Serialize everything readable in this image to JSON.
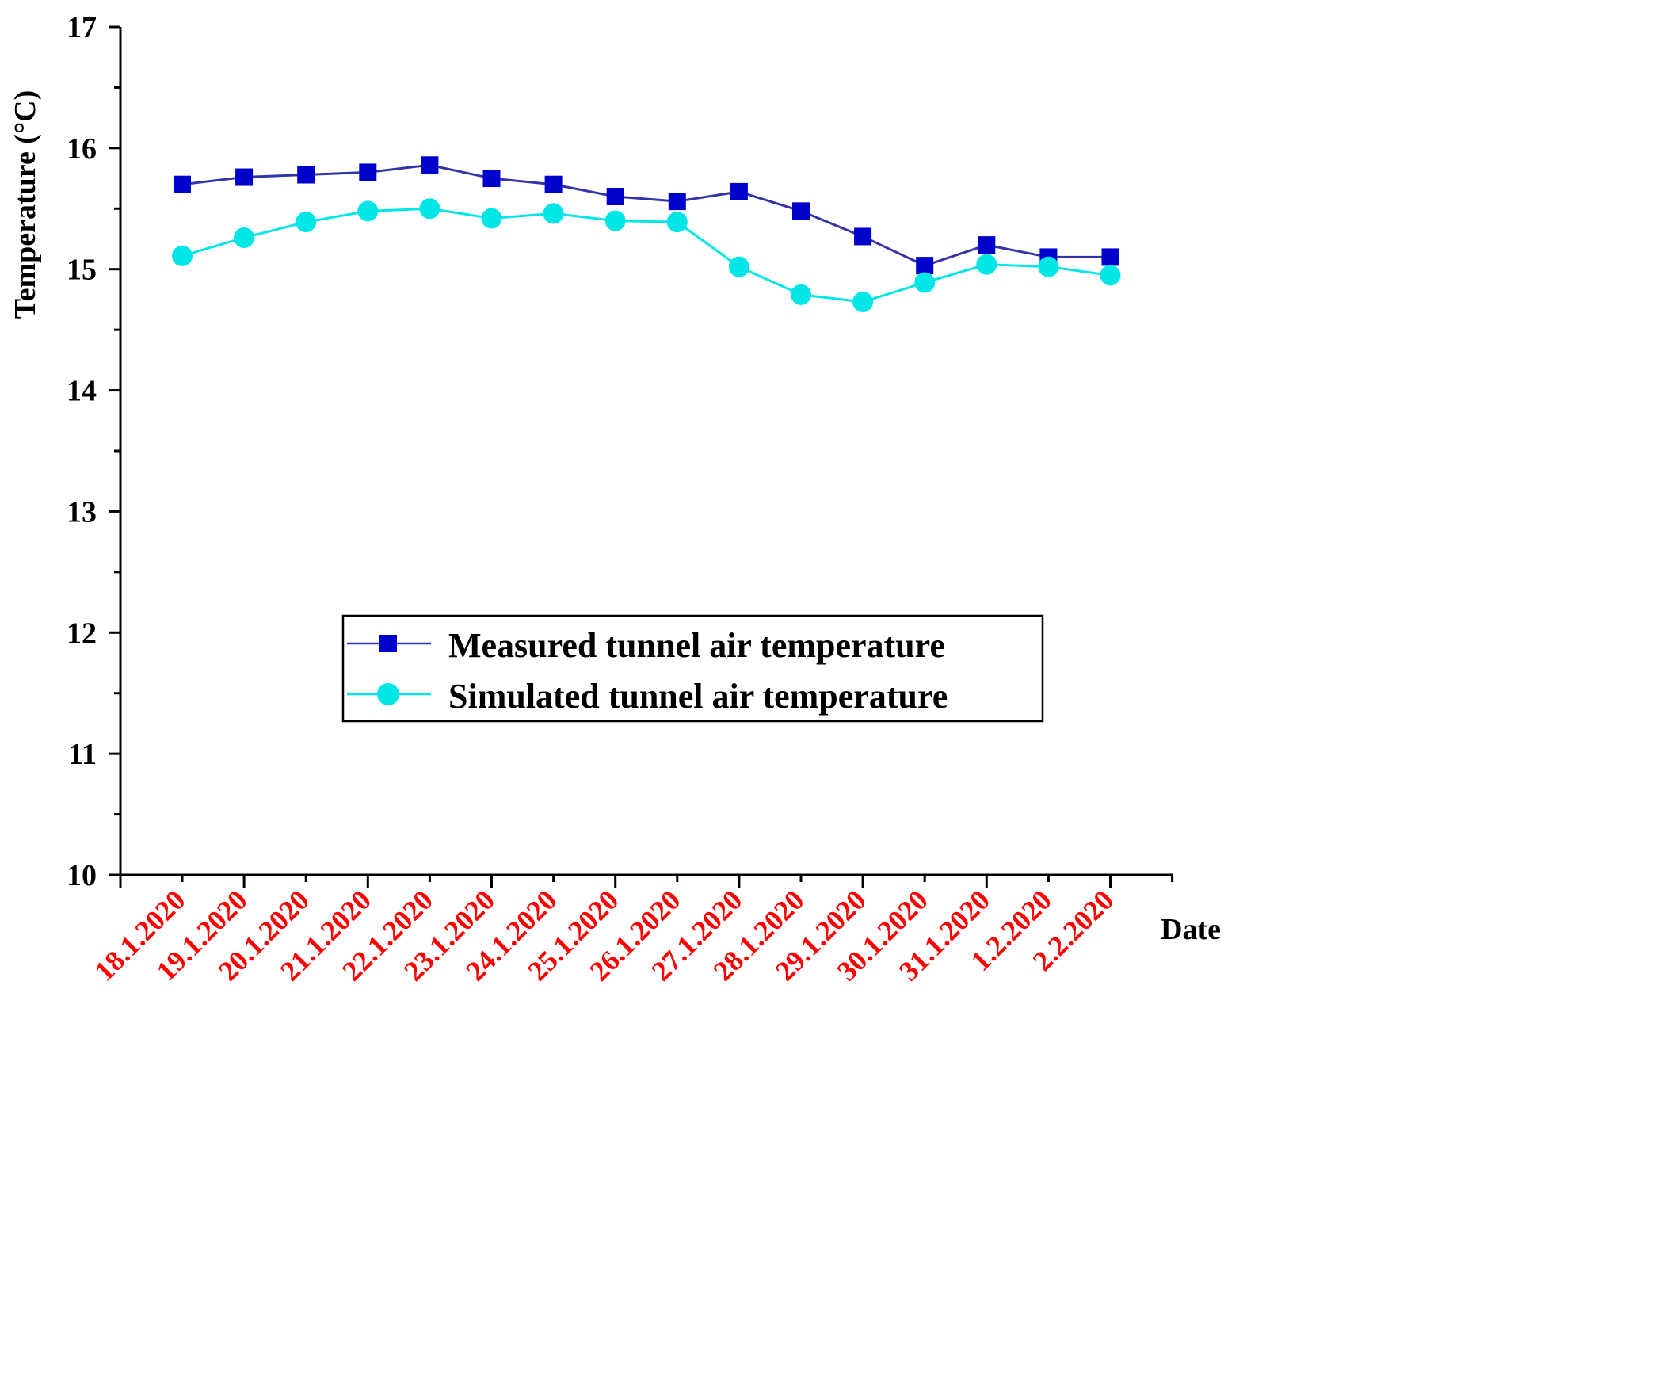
{
  "chart_data": {
    "type": "line",
    "title": "",
    "xlabel": "Date",
    "ylabel": "Temperature (°C)",
    "ylim": [
      10,
      17
    ],
    "yticks": [
      10,
      11,
      12,
      13,
      14,
      15,
      16,
      17
    ],
    "categories": [
      "18.1.2020",
      "19.1.2020",
      "20.1.2020",
      "21.1.2020",
      "22.1.2020",
      "23.1.2020",
      "24.1.2020",
      "25.1.2020",
      "26.1.2020",
      "27.1.2020",
      "28.1.2020",
      "29.1.2020",
      "30.1.2020",
      "31.1.2020",
      "1.2.2020",
      "2.2.2020"
    ],
    "legend_position": "center-right",
    "series": [
      {
        "name": "Measured tunnel air temperature",
        "marker": "square",
        "color": "#0000cc",
        "line_color": "#3333aa",
        "values": [
          15.7,
          15.76,
          15.78,
          15.8,
          15.86,
          15.75,
          15.7,
          15.6,
          15.56,
          15.64,
          15.48,
          15.27,
          15.03,
          15.2,
          15.1,
          15.1
        ]
      },
      {
        "name": "Simulated tunnel air temperature",
        "marker": "circle",
        "color": "#00e6e6",
        "line_color": "#00e6e6",
        "values": [
          15.11,
          15.26,
          15.39,
          15.48,
          15.5,
          15.42,
          15.46,
          15.4,
          15.39,
          15.02,
          14.79,
          14.73,
          14.89,
          15.04,
          15.02,
          14.95
        ]
      }
    ]
  }
}
